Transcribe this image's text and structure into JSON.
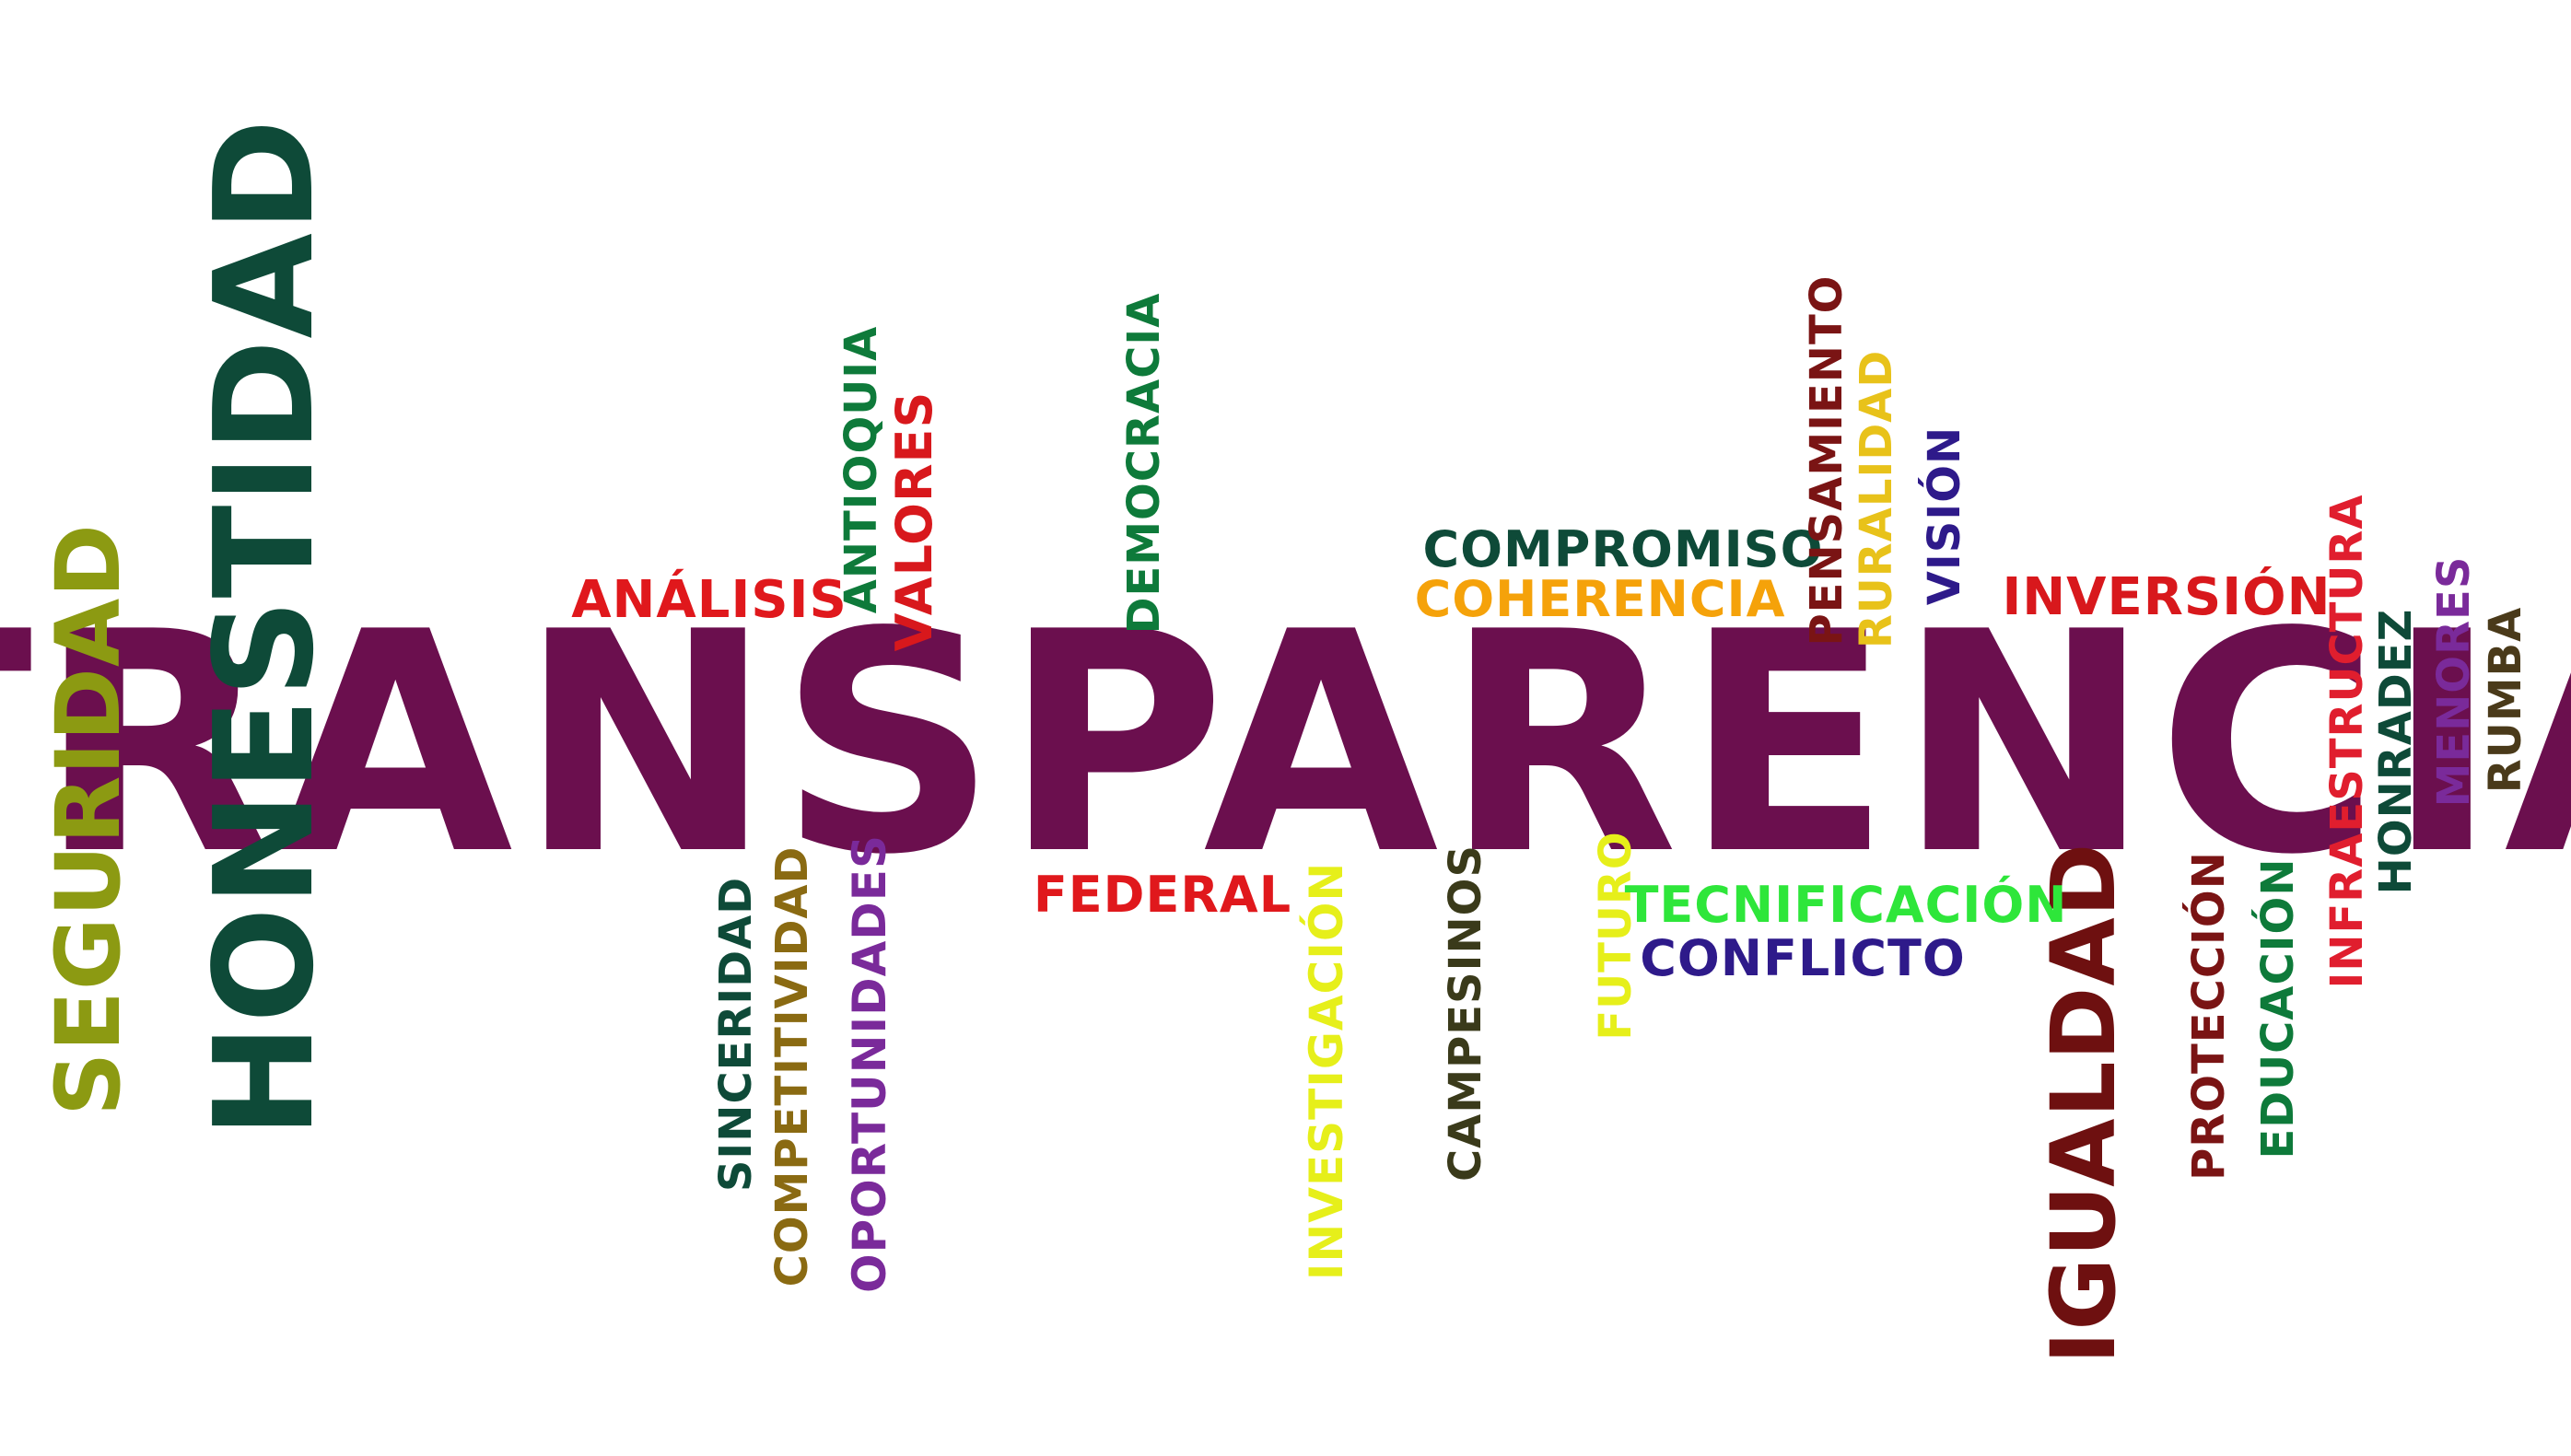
{
  "words": {
    "transparencia": "TRANSPARENCIA",
    "honestidad": "HONESTIDAD",
    "seguridad": "SEGURIDAD",
    "igualdad": "IGUALDAD",
    "analisis": "ANÁLISIS",
    "antioquia": "ANTIOQUIA",
    "valores": "VALORES",
    "democracia": "DEMOCRACIA",
    "compromiso": "COMPROMISO",
    "coherencia": "COHERENCIA",
    "pensamiento": "PENSAMIENTO",
    "ruralidad": "RURALIDAD",
    "vision": "VISIÓN",
    "inversion": "INVERSIÓN",
    "infraestructura": "INFRAESTRUCTURA",
    "honradez": "HONRADEZ",
    "menores": "MENORES",
    "rumba": "RUMBA",
    "sinceridad": "SINCERIDAD",
    "competitividad": "COMPETITIVIDAD",
    "oportunidades": "OPORTUNIDADES",
    "federal": "FEDERAL",
    "investigacion": "INVESTIGACIÓN",
    "campesinos": "CAMPESINOS",
    "futuro": "FUTURO",
    "tecnificacion": "TECNIFICACIÓN",
    "conflicto": "CONFLICTO",
    "proteccion": "PROTECCIÓN",
    "educacion": "EDUCACIÓN"
  },
  "colors": {
    "transparencia": "#6b0f4e",
    "honestidad": "#0e4a38",
    "seguridad": "#8c9a12",
    "igualdad": "#6e1010",
    "analisis": "#e0181c",
    "antioquia": "#0e7a3a",
    "valores": "#d8181c",
    "democracia": "#0e7a3a",
    "compromiso": "#0e4a38",
    "coherencia": "#f5a20a",
    "pensamiento": "#7a1414",
    "ruralidad": "#e8c21a",
    "vision": "#2e1a8a",
    "inversion": "#d8181c",
    "infraestructura": "#e01e2e",
    "honradez": "#0e4a38",
    "menores": "#7a2a9a",
    "rumba": "#4a3a1a",
    "sinceridad": "#0e4a38",
    "competitividad": "#8a6a12",
    "oportunidades": "#7a2a9a",
    "federal": "#e0181c",
    "investigacion": "#e6ef1a",
    "campesinos": "#3a3a1a",
    "futuro": "#e6ef1a",
    "tecnificacion": "#2ee63a",
    "conflicto": "#2e1a8a",
    "proteccion": "#7a1414",
    "educacion": "#0e7a3a"
  }
}
